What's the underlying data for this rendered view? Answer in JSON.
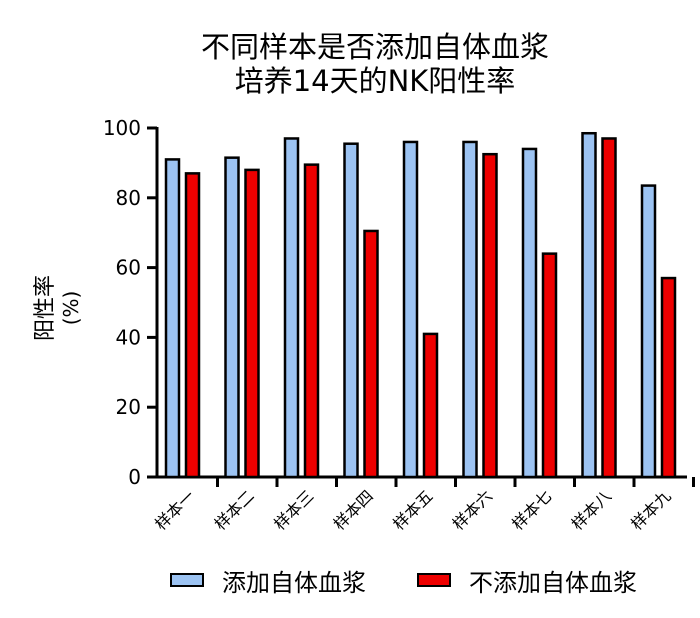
{
  "chart_data": {
    "type": "bar",
    "title_lines": [
      "不同样本是否添加自体血浆",
      "培养14天的NK阳性率"
    ],
    "ylabel_main": "阳性率",
    "ylabel_unit": "(%)",
    "xlabel": "",
    "ylim": [
      0,
      100
    ],
    "yticks": [
      "0",
      "20",
      "40",
      "60",
      "80",
      "100"
    ],
    "categories": [
      "样本一",
      "样本二",
      "样本三",
      "样本四",
      "样本五",
      "样本六",
      "样本七",
      "样本八",
      "样本九"
    ],
    "series": [
      {
        "name": "添加自体血浆",
        "color": "#9cc3f2",
        "values": [
          91,
          91.5,
          97,
          95.5,
          96,
          96,
          94,
          98.5,
          83.5
        ]
      },
      {
        "name": "不添加自体血浆",
        "color": "#ee0000",
        "values": [
          87,
          88,
          89.5,
          70.5,
          41,
          92.5,
          64,
          97,
          57
        ]
      }
    ],
    "grid": false,
    "legend_position": "bottom"
  }
}
